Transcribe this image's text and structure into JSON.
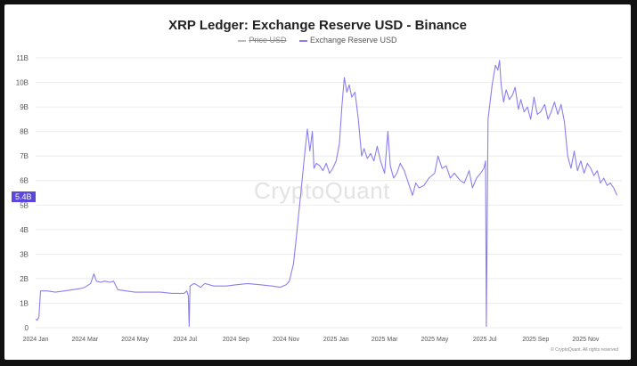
{
  "chart_data": {
    "type": "line",
    "title": "XRP Ledger: Exchange Reserve USD - Binance",
    "legend": [
      "Price USD",
      "Exchange Reserve USD"
    ],
    "legend_disabled": [
      "Price USD"
    ],
    "legend_position": "top-center",
    "ylim": [
      0,
      11000000000
    ],
    "yticks": [
      0,
      1000000000,
      2000000000,
      3000000000,
      4000000000,
      5000000000,
      6000000000,
      7000000000,
      8000000000,
      9000000000,
      10000000000,
      11000000000
    ],
    "ytick_labels": [
      "0",
      "1B",
      "2B",
      "3B",
      "4B",
      "5B",
      "6B",
      "7B",
      "8B",
      "9B",
      "10B",
      "11B"
    ],
    "xlim": [
      "2024-01-01",
      "2025-12-15"
    ],
    "xticks": [
      "2024-01-01",
      "2024-03-01",
      "2024-05-01",
      "2024-07-01",
      "2024-09-01",
      "2024-11-01",
      "2025-01-01",
      "2025-03-01",
      "2025-05-01",
      "2025-07-01",
      "2025-09-01",
      "2025-11-01"
    ],
    "xtick_labels": [
      "2024 Jan",
      "2024 Mar",
      "2024 May",
      "2024 Jul",
      "2024 Sep",
      "2024 Nov",
      "2025 Jan",
      "2025 Mar",
      "2025 May",
      "2025 Jul",
      "2025 Sep",
      "2025 Nov"
    ],
    "grid": true,
    "current_value_label": "5.4B",
    "series": [
      {
        "name": "Exchange Reserve USD",
        "color": "#8b7ff0",
        "points": [
          [
            "2024-01-01",
            0.35
          ],
          [
            "2024-01-03",
            0.3
          ],
          [
            "2024-01-05",
            0.45
          ],
          [
            "2024-01-07",
            1.5
          ],
          [
            "2024-01-15",
            1.5
          ],
          [
            "2024-01-25",
            1.45
          ],
          [
            "2024-02-05",
            1.5
          ],
          [
            "2024-02-15",
            1.55
          ],
          [
            "2024-02-25",
            1.6
          ],
          [
            "2024-03-01",
            1.65
          ],
          [
            "2024-03-08",
            1.8
          ],
          [
            "2024-03-12",
            2.2
          ],
          [
            "2024-03-15",
            1.9
          ],
          [
            "2024-03-20",
            1.85
          ],
          [
            "2024-03-25",
            1.9
          ],
          [
            "2024-04-01",
            1.85
          ],
          [
            "2024-04-05",
            1.9
          ],
          [
            "2024-04-10",
            1.55
          ],
          [
            "2024-04-20",
            1.5
          ],
          [
            "2024-05-01",
            1.45
          ],
          [
            "2024-05-15",
            1.45
          ],
          [
            "2024-06-01",
            1.45
          ],
          [
            "2024-06-15",
            1.4
          ],
          [
            "2024-06-30",
            1.4
          ],
          [
            "2024-07-03",
            1.5
          ],
          [
            "2024-07-05",
            1.3
          ],
          [
            "2024-07-06",
            0.05
          ],
          [
            "2024-07-07",
            1.7
          ],
          [
            "2024-07-12",
            1.8
          ],
          [
            "2024-07-15",
            1.75
          ],
          [
            "2024-07-20",
            1.65
          ],
          [
            "2024-07-25",
            1.8
          ],
          [
            "2024-08-05",
            1.7
          ],
          [
            "2024-08-20",
            1.7
          ],
          [
            "2024-09-01",
            1.75
          ],
          [
            "2024-09-15",
            1.8
          ],
          [
            "2024-10-01",
            1.75
          ],
          [
            "2024-10-15",
            1.7
          ],
          [
            "2024-10-25",
            1.65
          ],
          [
            "2024-11-01",
            1.75
          ],
          [
            "2024-11-05",
            1.9
          ],
          [
            "2024-11-10",
            2.6
          ],
          [
            "2024-11-13",
            3.5
          ],
          [
            "2024-11-16",
            4.5
          ],
          [
            "2024-11-19",
            5.5
          ],
          [
            "2024-11-22",
            6.5
          ],
          [
            "2024-11-25",
            7.5
          ],
          [
            "2024-11-27",
            8.1
          ],
          [
            "2024-11-30",
            7.2
          ],
          [
            "2024-12-03",
            8.0
          ],
          [
            "2024-12-05",
            6.5
          ],
          [
            "2024-12-08",
            6.7
          ],
          [
            "2024-12-12",
            6.6
          ],
          [
            "2024-12-16",
            6.4
          ],
          [
            "2024-12-20",
            6.7
          ],
          [
            "2024-12-24",
            6.3
          ],
          [
            "2024-12-28",
            6.5
          ],
          [
            "2025-01-01",
            6.8
          ],
          [
            "2025-01-05",
            7.5
          ],
          [
            "2025-01-08",
            9.0
          ],
          [
            "2025-01-11",
            10.2
          ],
          [
            "2025-01-14",
            9.6
          ],
          [
            "2025-01-17",
            9.9
          ],
          [
            "2025-01-20",
            9.4
          ],
          [
            "2025-01-24",
            9.6
          ],
          [
            "2025-01-28",
            8.5
          ],
          [
            "2025-02-01",
            7.0
          ],
          [
            "2025-02-04",
            7.3
          ],
          [
            "2025-02-08",
            6.9
          ],
          [
            "2025-02-12",
            7.1
          ],
          [
            "2025-02-16",
            6.8
          ],
          [
            "2025-02-20",
            7.4
          ],
          [
            "2025-02-24",
            6.8
          ],
          [
            "2025-03-01",
            6.3
          ],
          [
            "2025-03-05",
            8.0
          ],
          [
            "2025-03-08",
            6.6
          ],
          [
            "2025-03-12",
            6.1
          ],
          [
            "2025-03-16",
            6.3
          ],
          [
            "2025-03-20",
            6.7
          ],
          [
            "2025-03-25",
            6.4
          ],
          [
            "2025-03-30",
            5.9
          ],
          [
            "2025-04-04",
            5.4
          ],
          [
            "2025-04-08",
            5.9
          ],
          [
            "2025-04-12",
            5.7
          ],
          [
            "2025-04-18",
            5.8
          ],
          [
            "2025-04-24",
            6.1
          ],
          [
            "2025-05-01",
            6.3
          ],
          [
            "2025-05-05",
            7.0
          ],
          [
            "2025-05-10",
            6.5
          ],
          [
            "2025-05-15",
            6.6
          ],
          [
            "2025-05-20",
            6.1
          ],
          [
            "2025-05-25",
            6.3
          ],
          [
            "2025-06-01",
            6.0
          ],
          [
            "2025-06-06",
            5.9
          ],
          [
            "2025-06-12",
            6.4
          ],
          [
            "2025-06-16",
            5.7
          ],
          [
            "2025-06-21",
            6.1
          ],
          [
            "2025-06-26",
            6.3
          ],
          [
            "2025-06-30",
            6.5
          ],
          [
            "2025-07-02",
            6.8
          ],
          [
            "2025-07-03",
            0.05
          ],
          [
            "2025-07-05",
            8.5
          ],
          [
            "2025-07-10",
            9.9
          ],
          [
            "2025-07-14",
            10.7
          ],
          [
            "2025-07-17",
            10.5
          ],
          [
            "2025-07-19",
            10.9
          ],
          [
            "2025-07-21",
            9.9
          ],
          [
            "2025-07-24",
            9.2
          ],
          [
            "2025-07-27",
            9.7
          ],
          [
            "2025-07-31",
            9.3
          ],
          [
            "2025-08-04",
            9.5
          ],
          [
            "2025-08-07",
            9.8
          ],
          [
            "2025-08-11",
            8.9
          ],
          [
            "2025-08-14",
            9.3
          ],
          [
            "2025-08-18",
            8.8
          ],
          [
            "2025-08-22",
            9.0
          ],
          [
            "2025-08-26",
            8.5
          ],
          [
            "2025-08-30",
            9.4
          ],
          [
            "2025-09-03",
            8.7
          ],
          [
            "2025-09-07",
            8.8
          ],
          [
            "2025-09-12",
            9.1
          ],
          [
            "2025-09-16",
            8.5
          ],
          [
            "2025-09-20",
            8.8
          ],
          [
            "2025-09-24",
            9.2
          ],
          [
            "2025-09-28",
            8.7
          ],
          [
            "2025-10-02",
            9.1
          ],
          [
            "2025-10-06",
            8.4
          ],
          [
            "2025-10-10",
            7.0
          ],
          [
            "2025-10-14",
            6.5
          ],
          [
            "2025-10-18",
            7.2
          ],
          [
            "2025-10-22",
            6.4
          ],
          [
            "2025-10-26",
            6.8
          ],
          [
            "2025-10-30",
            6.3
          ],
          [
            "2025-11-03",
            6.7
          ],
          [
            "2025-11-07",
            6.5
          ],
          [
            "2025-11-11",
            6.2
          ],
          [
            "2025-11-15",
            6.4
          ],
          [
            "2025-11-19",
            5.9
          ],
          [
            "2025-11-23",
            6.1
          ],
          [
            "2025-11-27",
            5.8
          ],
          [
            "2025-12-01",
            5.9
          ],
          [
            "2025-12-05",
            5.7
          ],
          [
            "2025-12-09",
            5.4
          ]
        ],
        "value_unit": "billion USD"
      }
    ],
    "watermark": "CryptoQuant",
    "copyright": "© CryptoQuant. All rights reserved"
  }
}
